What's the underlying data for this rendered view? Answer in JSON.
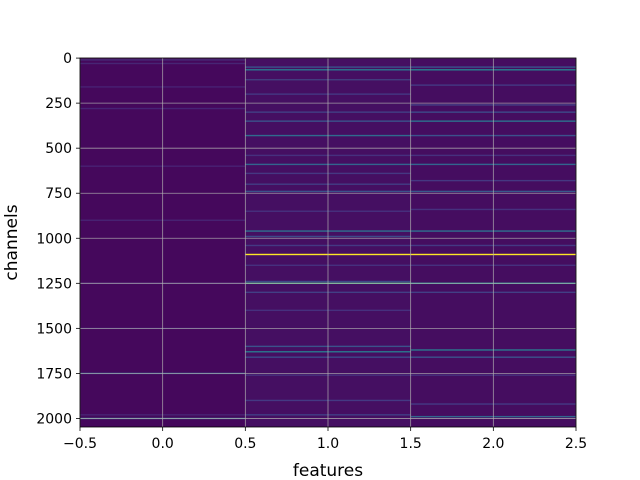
{
  "chart_data": {
    "type": "heatmap",
    "title": "",
    "xlabel": "features",
    "ylabel": "channels",
    "xlim": [
      -0.5,
      2.5
    ],
    "ylim": [
      2047.5,
      -0.5
    ],
    "x_ticks": [
      -0.5,
      0.0,
      0.5,
      1.0,
      1.5,
      2.0,
      2.5
    ],
    "x_tick_labels": [
      "−0.5",
      "0.0",
      "0.5",
      "1.0",
      "1.5",
      "2.0",
      "2.5"
    ],
    "y_ticks": [
      0,
      250,
      500,
      750,
      1000,
      1250,
      1500,
      1750,
      2000
    ],
    "y_tick_labels": [
      "0",
      "250",
      "500",
      "750",
      "1000",
      "1250",
      "1500",
      "1750",
      "2000"
    ],
    "grid": true,
    "colormap": "viridis",
    "background_color": "#440f5a",
    "columns": [
      {
        "feature": 0,
        "base_color": "#45085c",
        "stripes": [
          {
            "channel": 10,
            "color": "#482b77"
          },
          {
            "channel": 30,
            "color": "#472574"
          },
          {
            "channel": 160,
            "color": "#482173"
          },
          {
            "channel": 280,
            "color": "#472374"
          },
          {
            "channel": 600,
            "color": "#482173"
          },
          {
            "channel": 900,
            "color": "#472374"
          },
          {
            "channel": 1250,
            "color": "#482173"
          },
          {
            "channel": 1500,
            "color": "#482173"
          },
          {
            "channel": 1750,
            "color": "#3a578c"
          },
          {
            "channel": 1980,
            "color": "#482374"
          },
          {
            "channel": 2000,
            "color": "#31688e"
          }
        ]
      },
      {
        "feature": 1,
        "base_color": "#450f62",
        "stripes": [
          {
            "channel": 50,
            "color": "#3b528b"
          },
          {
            "channel": 65,
            "color": "#2a788e"
          },
          {
            "channel": 120,
            "color": "#423d7f"
          },
          {
            "channel": 200,
            "color": "#443883"
          },
          {
            "channel": 300,
            "color": "#423f85"
          },
          {
            "channel": 350,
            "color": "#3b528b"
          },
          {
            "channel": 430,
            "color": "#2f6b8e"
          },
          {
            "channel": 540,
            "color": "#46307e"
          },
          {
            "channel": 590,
            "color": "#32658e"
          },
          {
            "channel": 640,
            "color": "#453882"
          },
          {
            "channel": 700,
            "color": "#433d84"
          },
          {
            "channel": 740,
            "color": "#3b528b"
          },
          {
            "channel": 850,
            "color": "#46307e"
          },
          {
            "channel": 960,
            "color": "#2e6f8e"
          },
          {
            "channel": 990,
            "color": "#3e4989"
          },
          {
            "channel": 1040,
            "color": "#443983"
          },
          {
            "channel": 1090,
            "color": "#fde725"
          },
          {
            "channel": 1150,
            "color": "#46307e"
          },
          {
            "channel": 1240,
            "color": "#3e4989"
          },
          {
            "channel": 1250,
            "color": "#35b779"
          },
          {
            "channel": 1300,
            "color": "#423f85"
          },
          {
            "channel": 1400,
            "color": "#46307e"
          },
          {
            "channel": 1600,
            "color": "#3b528b"
          },
          {
            "channel": 1630,
            "color": "#2a788e"
          },
          {
            "channel": 1660,
            "color": "#3e4989"
          },
          {
            "channel": 1760,
            "color": "#46307e"
          },
          {
            "channel": 1900,
            "color": "#443983"
          },
          {
            "channel": 1980,
            "color": "#423f85"
          }
        ]
      },
      {
        "feature": 2,
        "base_color": "#450d60",
        "stripes": [
          {
            "channel": 50,
            "color": "#3b528b"
          },
          {
            "channel": 65,
            "color": "#26828e"
          },
          {
            "channel": 150,
            "color": "#443983"
          },
          {
            "channel": 260,
            "color": "#433e85"
          },
          {
            "channel": 300,
            "color": "#3e4989"
          },
          {
            "channel": 350,
            "color": "#2c728e"
          },
          {
            "channel": 430,
            "color": "#3b528b"
          },
          {
            "channel": 540,
            "color": "#46307e"
          },
          {
            "channel": 590,
            "color": "#32658e"
          },
          {
            "channel": 680,
            "color": "#453882"
          },
          {
            "channel": 740,
            "color": "#38598c"
          },
          {
            "channel": 840,
            "color": "#46307e"
          },
          {
            "channel": 960,
            "color": "#2e6f8e"
          },
          {
            "channel": 1040,
            "color": "#443983"
          },
          {
            "channel": 1090,
            "color": "#fde725"
          },
          {
            "channel": 1150,
            "color": "#46307e"
          },
          {
            "channel": 1250,
            "color": "#21918c"
          },
          {
            "channel": 1300,
            "color": "#423f85"
          },
          {
            "channel": 1620,
            "color": "#2a788e"
          },
          {
            "channel": 1660,
            "color": "#3b528b"
          },
          {
            "channel": 1760,
            "color": "#46307e"
          },
          {
            "channel": 1920,
            "color": "#443983"
          },
          {
            "channel": 1990,
            "color": "#32658e"
          }
        ]
      }
    ]
  }
}
